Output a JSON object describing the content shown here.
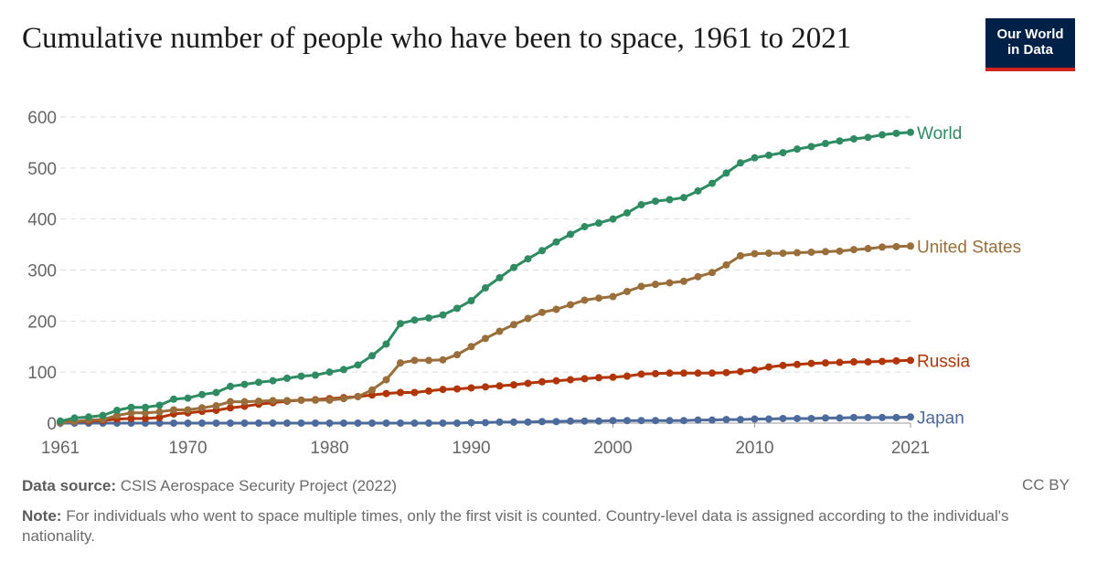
{
  "header": {
    "title": "Cumulative number of people who have been to space, 1961 to 2021",
    "logo_line1": "Our World",
    "logo_line2": "in Data"
  },
  "footer": {
    "source_label": "Data source:",
    "source_text": "CSIS Aerospace Security Project (2022)",
    "note_label": "Note:",
    "note_text": "For individuals who went to space multiple times, only the first visit is counted. Country-level data is assigned according to the individual's nationality.",
    "license": "CC BY"
  },
  "chart_data": {
    "type": "line",
    "title": "Cumulative number of people who have been to space, 1961 to 2021",
    "xlabel": "",
    "ylabel": "",
    "xlim": [
      1961,
      2021
    ],
    "ylim": [
      0,
      600
    ],
    "yticks": [
      0,
      100,
      200,
      300,
      400,
      500,
      600
    ],
    "xticks": [
      1961,
      1970,
      1980,
      1990,
      2000,
      2010,
      2021
    ],
    "grid": true,
    "legend": "end-of-line labels",
    "x": [
      1961,
      1962,
      1963,
      1964,
      1965,
      1966,
      1967,
      1968,
      1969,
      1970,
      1971,
      1972,
      1973,
      1974,
      1975,
      1976,
      1977,
      1978,
      1979,
      1980,
      1981,
      1982,
      1983,
      1984,
      1985,
      1986,
      1987,
      1988,
      1989,
      1990,
      1991,
      1992,
      1993,
      1994,
      1995,
      1996,
      1997,
      1998,
      1999,
      2000,
      2001,
      2002,
      2003,
      2004,
      2005,
      2006,
      2007,
      2008,
      2009,
      2010,
      2011,
      2012,
      2013,
      2014,
      2015,
      2016,
      2017,
      2018,
      2019,
      2020,
      2021
    ],
    "series": [
      {
        "name": "World",
        "color": "#2e8b62",
        "values": [
          4,
          10,
          12,
          15,
          25,
          31,
          31,
          35,
          47,
          49,
          56,
          60,
          72,
          76,
          80,
          83,
          88,
          92,
          94,
          100,
          105,
          114,
          132,
          155,
          195,
          202,
          206,
          212,
          225,
          240,
          265,
          285,
          305,
          322,
          338,
          355,
          370,
          385,
          392,
          400,
          412,
          428,
          435,
          438,
          442,
          455,
          470,
          490,
          510,
          520,
          525,
          530,
          537,
          542,
          548,
          553,
          557,
          560,
          565,
          568,
          570
        ]
      },
      {
        "name": "United States",
        "color": "#9a6e3a",
        "values": [
          1,
          3,
          6,
          7,
          15,
          20,
          20,
          22,
          26,
          26,
          30,
          34,
          42,
          42,
          43,
          44,
          44,
          45,
          45,
          45,
          48,
          52,
          65,
          85,
          118,
          123,
          123,
          124,
          134,
          150,
          166,
          180,
          193,
          205,
          217,
          223,
          232,
          241,
          245,
          248,
          258,
          268,
          272,
          275,
          278,
          287,
          295,
          310,
          328,
          332,
          333,
          333,
          334,
          335,
          336,
          337,
          340,
          342,
          345,
          346,
          347
        ]
      },
      {
        "name": "Russia",
        "color": "#b13507",
        "values": [
          2,
          3,
          4,
          5,
          8,
          9,
          9,
          11,
          18,
          20,
          23,
          25,
          30,
          33,
          37,
          40,
          43,
          45,
          46,
          48,
          50,
          52,
          55,
          58,
          60,
          60,
          63,
          66,
          67,
          69,
          71,
          73,
          75,
          78,
          81,
          83,
          85,
          87,
          89,
          90,
          92,
          96,
          97,
          98,
          98,
          98,
          98,
          99,
          101,
          104,
          110,
          113,
          115,
          117,
          118,
          119,
          120,
          120,
          121,
          122,
          123
        ]
      },
      {
        "name": "Japan",
        "color": "#4c6a9c",
        "values": [
          0,
          0,
          0,
          0,
          0,
          0,
          0,
          0,
          0,
          0,
          0,
          0,
          0,
          0,
          0,
          0,
          0,
          0,
          0,
          0,
          0,
          0,
          0,
          0,
          0,
          0,
          0,
          0,
          0,
          1,
          1,
          2,
          2,
          2,
          3,
          3,
          4,
          4,
          4,
          5,
          5,
          5,
          5,
          5,
          5,
          6,
          6,
          7,
          7,
          8,
          8,
          9,
          9,
          9,
          10,
          10,
          11,
          11,
          11,
          11,
          12
        ]
      }
    ]
  }
}
